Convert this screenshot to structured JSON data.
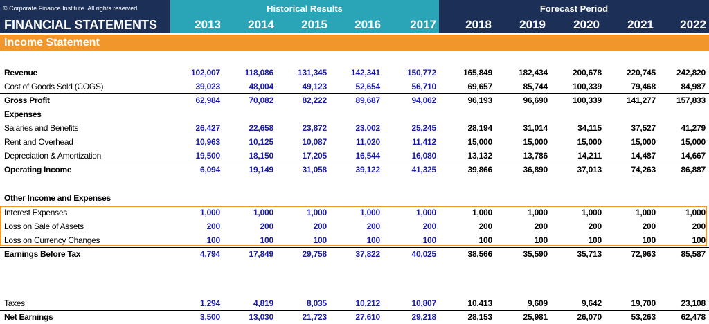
{
  "copyright": "© Corporate Finance Institute. All rights reserved.",
  "title": "FINANCIAL STATEMENTS",
  "historical_label": "Historical Results",
  "forecast_label": "Forecast Period",
  "section": "Income Statement",
  "years": [
    "2013",
    "2014",
    "2015",
    "2016",
    "2017",
    "2018",
    "2019",
    "2020",
    "2021",
    "2022"
  ],
  "colors": {
    "navy": "#1b2f57",
    "teal": "#2aa5b8",
    "orange": "#f0962a",
    "historical_text": "#1a1aa8"
  },
  "rows": [
    {
      "label": "Revenue",
      "values": [
        "102,007",
        "118,086",
        "131,345",
        "142,341",
        "150,772",
        "165,849",
        "182,434",
        "200,678",
        "220,745",
        "242,820"
      ]
    },
    {
      "label": "Cost of Goods Sold (COGS)",
      "values": [
        "39,023",
        "48,004",
        "49,123",
        "52,654",
        "56,710",
        "69,657",
        "85,744",
        "100,339",
        "79,468",
        "84,987"
      ]
    },
    {
      "label": "Gross Profit",
      "values": [
        "62,984",
        "70,082",
        "82,222",
        "89,687",
        "94,062",
        "96,193",
        "96,690",
        "100,339",
        "141,277",
        "157,833"
      ]
    },
    {
      "label": "Expenses",
      "values": [
        "",
        "",
        "",
        "",
        "",
        "",
        "",
        "",
        "",
        ""
      ]
    },
    {
      "label": "Salaries and Benefits",
      "values": [
        "26,427",
        "22,658",
        "23,872",
        "23,002",
        "25,245",
        "28,194",
        "31,014",
        "34,115",
        "37,527",
        "41,279"
      ]
    },
    {
      "label": "Rent and Overhead",
      "values": [
        "10,963",
        "10,125",
        "10,087",
        "11,020",
        "11,412",
        "15,000",
        "15,000",
        "15,000",
        "15,000",
        "15,000"
      ]
    },
    {
      "label": "Depreciation & Amortization",
      "values": [
        "19,500",
        "18,150",
        "17,205",
        "16,544",
        "16,080",
        "13,132",
        "13,786",
        "14,211",
        "14,487",
        "14,667"
      ]
    },
    {
      "label": "Operating Income",
      "values": [
        "6,094",
        "19,149",
        "31,058",
        "39,122",
        "41,325",
        "39,866",
        "36,890",
        "37,013",
        "74,263",
        "86,887"
      ]
    },
    {
      "label": "Other Income and Expenses",
      "values": [
        "",
        "",
        "",
        "",
        "",
        "",
        "",
        "",
        "",
        ""
      ]
    },
    {
      "label": "Interest Expenses",
      "values": [
        "1,000",
        "1,000",
        "1,000",
        "1,000",
        "1,000",
        "1,000",
        "1,000",
        "1,000",
        "1,000",
        "1,000"
      ]
    },
    {
      "label": "Loss on Sale of Assets",
      "values": [
        "200",
        "200",
        "200",
        "200",
        "200",
        "200",
        "200",
        "200",
        "200",
        "200"
      ]
    },
    {
      "label": "Loss on Currency Changes",
      "values": [
        "100",
        "100",
        "100",
        "100",
        "100",
        "100",
        "100",
        "100",
        "100",
        "100"
      ]
    },
    {
      "label": "Earnings Before Tax",
      "values": [
        "4,794",
        "17,849",
        "29,758",
        "37,822",
        "40,025",
        "38,566",
        "35,590",
        "35,713",
        "72,963",
        "85,587"
      ]
    },
    {
      "label": "Taxes",
      "values": [
        "1,294",
        "4,819",
        "8,035",
        "10,212",
        "10,807",
        "10,413",
        "9,609",
        "9,642",
        "19,700",
        "23,108"
      ]
    },
    {
      "label": "Net Earnings",
      "values": [
        "3,500",
        "13,030",
        "21,723",
        "27,610",
        "29,218",
        "28,153",
        "25,981",
        "26,070",
        "53,263",
        "62,478"
      ]
    }
  ]
}
